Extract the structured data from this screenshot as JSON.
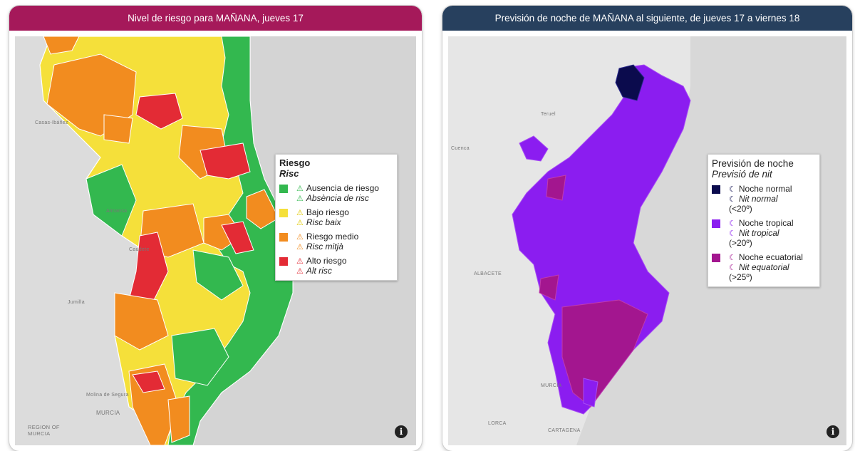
{
  "left_panel": {
    "title": "Nivel de riesgo para MAÑANA, jueves 17",
    "header_color": "#a5195a",
    "legend": {
      "title": "Riesgo",
      "subtitle": "Risc",
      "items": [
        {
          "label_es": "Ausencia de riesgo",
          "label_ca": "Absència de risc",
          "color": "#33b84f",
          "icon": "warning-triangle-icon"
        },
        {
          "label_es": "Bajo riesgo",
          "label_ca": "Risc baix",
          "color": "#f5e03a",
          "icon": "warning-triangle-icon"
        },
        {
          "label_es": "Riesgo medio",
          "label_ca": "Risc mitjà",
          "color": "#f28c1f",
          "icon": "warning-triangle-icon"
        },
        {
          "label_es": "Alto riesgo",
          "label_ca": "Alt risc",
          "color": "#e32b35",
          "icon": "warning-triangle-icon"
        }
      ]
    },
    "places": [
      "Casas-Ibáñez",
      "Almansa",
      "Caudete",
      "Jumilla",
      "Molina de Segura",
      "MURCIA",
      "REGION OF MURCIA"
    ],
    "info_icon": "i"
  },
  "right_panel": {
    "title": "Previsión de noche de MAÑANA al siguiente, de jueves 17 a viernes 18",
    "header_color": "#27405e",
    "legend": {
      "title": "Previsión de noche",
      "subtitle": "Previsió de nit",
      "items": [
        {
          "label_es": "Noche normal",
          "label_ca": "Nit normal",
          "range": "(<20º)",
          "color": "#0b0b4d",
          "icon": "moon-icon"
        },
        {
          "label_es": "Noche tropical",
          "label_ca": "Nit tropical",
          "range": "(>20º)",
          "color": "#8b1df0",
          "icon": "moon-icon"
        },
        {
          "label_es": "Noche ecuatorial",
          "label_ca": "Nit equatorial",
          "range": "(>25º)",
          "color": "#a3168f",
          "icon": "moon-icon"
        }
      ]
    },
    "places": [
      "Teruel",
      "Cuenca",
      "ALBACETE",
      "MURCIA",
      "LORCA",
      "CARTAGENA"
    ],
    "info_icon": "i"
  }
}
